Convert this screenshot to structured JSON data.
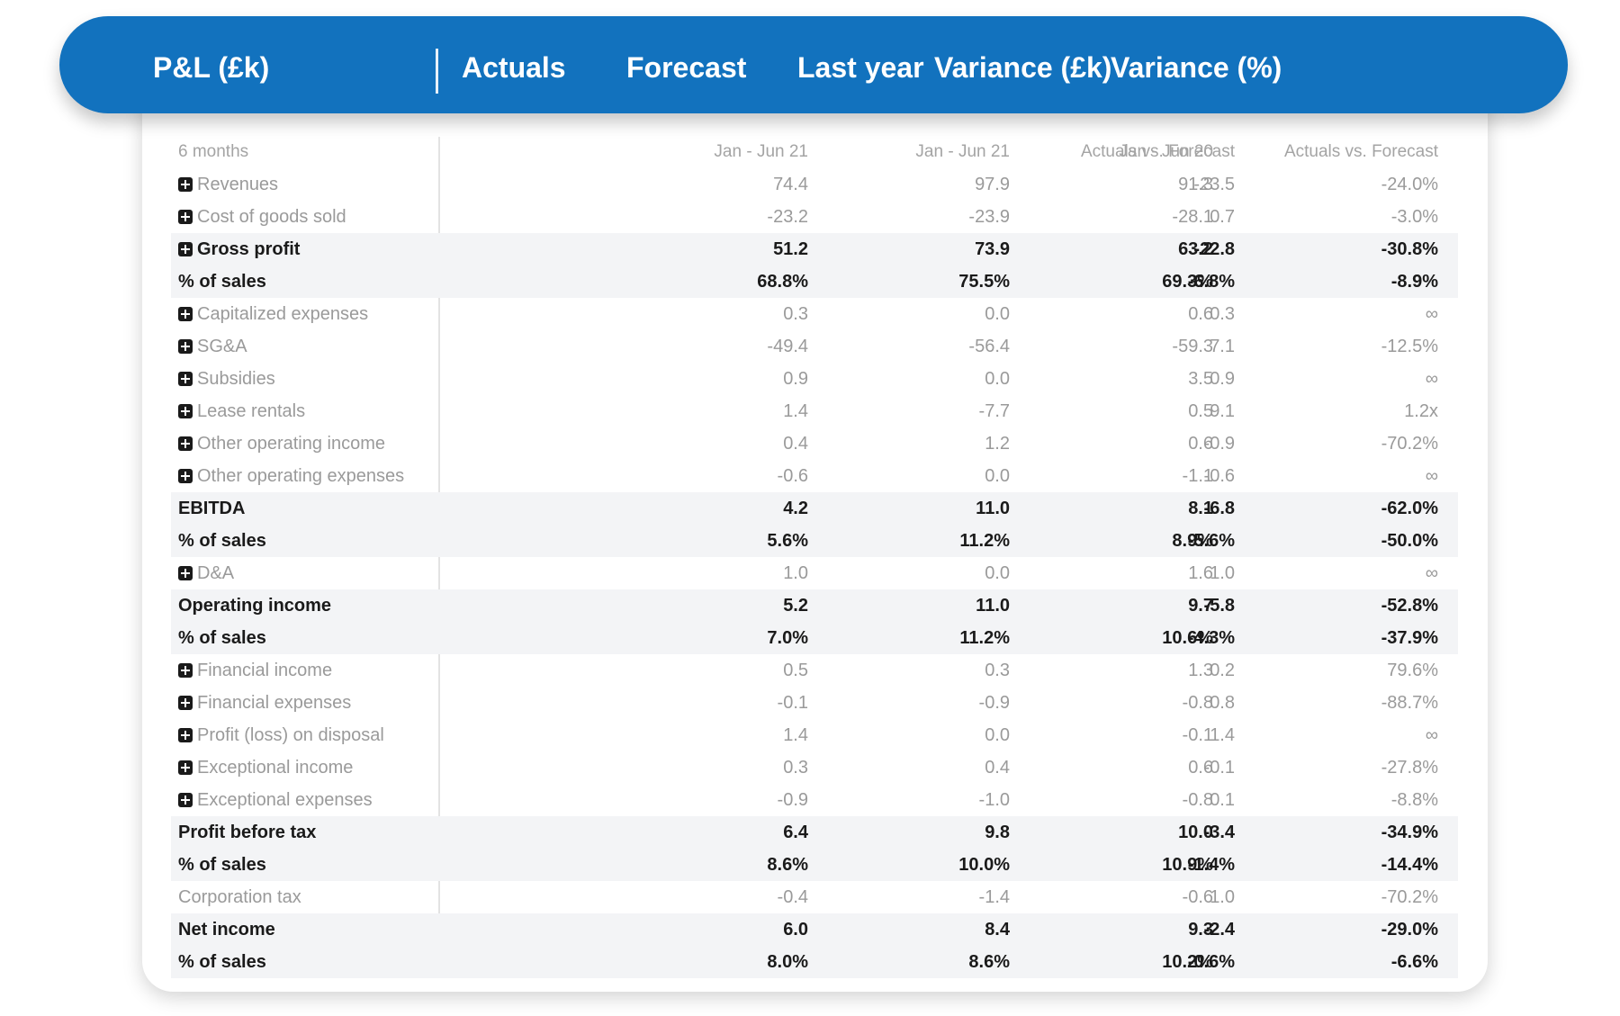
{
  "header": {
    "columns": [
      "P&L (£k)",
      "Actuals",
      "Forecast",
      "Last year",
      "Variance (£k)",
      "Variance (%)"
    ]
  },
  "subheader": [
    "6 months",
    "Jan - Jun 21",
    "Jan - Jun 21",
    "Jan - Jun 20",
    "Actuals vs. Forecast",
    "Actuals vs. Forecast"
  ],
  "rows": [
    {
      "label": "Revenues",
      "icon": "plus-box-icon",
      "bold": false,
      "alt": false,
      "values": [
        "74.4",
        "97.9",
        "91.3",
        "-23.5",
        "-24.0%"
      ]
    },
    {
      "label": "Cost of goods sold",
      "icon": "plus-box-icon",
      "bold": false,
      "alt": false,
      "values": [
        "-23.2",
        "-23.9",
        "-28.1",
        "0.7",
        "-3.0%"
      ]
    },
    {
      "label": "Gross profit",
      "icon": "plus-box-icon",
      "bold": true,
      "alt": true,
      "values": [
        "51.2",
        "73.9",
        "63.2",
        "-22.8",
        "-30.8%"
      ]
    },
    {
      "label": "% of sales",
      "icon": null,
      "bold": true,
      "alt": true,
      "values": [
        "68.8%",
        "75.5%",
        "69.3%",
        "-6.8%",
        "-8.9%"
      ]
    },
    {
      "label": "Capitalized expenses",
      "icon": "plus-box-icon",
      "bold": false,
      "alt": false,
      "values": [
        "0.3",
        "0.0",
        "0.6",
        "0.3",
        "∞"
      ]
    },
    {
      "label": "SG&A",
      "icon": "plus-box-icon",
      "bold": false,
      "alt": false,
      "values": [
        "-49.4",
        "-56.4",
        "-59.3",
        "7.1",
        "-12.5%"
      ]
    },
    {
      "label": "Subsidies",
      "icon": "plus-box-icon",
      "bold": false,
      "alt": false,
      "values": [
        "0.9",
        "0.0",
        "3.5",
        "0.9",
        "∞"
      ]
    },
    {
      "label": "Lease rentals",
      "icon": "plus-box-icon",
      "bold": false,
      "alt": false,
      "values": [
        "1.4",
        "-7.7",
        "0.5",
        "9.1",
        "1.2x"
      ]
    },
    {
      "label": "Other operating income",
      "icon": "plus-box-icon",
      "bold": false,
      "alt": false,
      "values": [
        "0.4",
        "1.2",
        "0.6",
        "-0.9",
        "-70.2%"
      ]
    },
    {
      "label": "Other operating expenses",
      "icon": "plus-box-icon",
      "bold": false,
      "alt": false,
      "values": [
        "-0.6",
        "0.0",
        "-1.1",
        "-0.6",
        "∞"
      ]
    },
    {
      "label": "EBITDA",
      "icon": null,
      "bold": true,
      "alt": true,
      "values": [
        "4.2",
        "11.0",
        "8.1",
        "-6.8",
        "-62.0%"
      ]
    },
    {
      "label": "% of sales",
      "icon": null,
      "bold": true,
      "alt": true,
      "values": [
        "5.6%",
        "11.2%",
        "8.9%",
        "-5.6%",
        "-50.0%"
      ]
    },
    {
      "label": "D&A",
      "icon": "plus-box-icon",
      "bold": false,
      "alt": false,
      "values": [
        "1.0",
        "0.0",
        "1.6",
        "1.0",
        "∞"
      ]
    },
    {
      "label": "Operating income",
      "icon": null,
      "bold": true,
      "alt": true,
      "values": [
        "5.2",
        "11.0",
        "9.7",
        "-5.8",
        "-52.8%"
      ]
    },
    {
      "label": "% of sales",
      "icon": null,
      "bold": true,
      "alt": true,
      "values": [
        "7.0%",
        "11.2%",
        "10.6%",
        "-4.3%",
        "-37.9%"
      ]
    },
    {
      "label": "Financial income",
      "icon": "plus-box-icon",
      "bold": false,
      "alt": false,
      "values": [
        "0.5",
        "0.3",
        "1.3",
        "0.2",
        "79.6%"
      ]
    },
    {
      "label": "Financial expenses",
      "icon": "plus-box-icon",
      "bold": false,
      "alt": false,
      "values": [
        "-0.1",
        "-0.9",
        "-0.8",
        "0.8",
        "-88.7%"
      ]
    },
    {
      "label": "Profit (loss) on disposal",
      "icon": "plus-box-icon",
      "bold": false,
      "alt": false,
      "values": [
        "1.4",
        "0.0",
        "-0.1",
        "1.4",
        "∞"
      ]
    },
    {
      "label": "Exceptional income",
      "icon": "plus-box-icon",
      "bold": false,
      "alt": false,
      "values": [
        "0.3",
        "0.4",
        "0.6",
        "-0.1",
        "-27.8%"
      ]
    },
    {
      "label": "Exceptional expenses",
      "icon": "plus-box-icon",
      "bold": false,
      "alt": false,
      "values": [
        "-0.9",
        "-1.0",
        "-0.8",
        "0.1",
        "-8.8%"
      ]
    },
    {
      "label": "Profit before tax",
      "icon": null,
      "bold": true,
      "alt": true,
      "values": [
        "6.4",
        "9.8",
        "10.0",
        "-3.4",
        "-34.9%"
      ]
    },
    {
      "label": "% of sales",
      "icon": null,
      "bold": true,
      "alt": true,
      "values": [
        "8.6%",
        "10.0%",
        "10.9%",
        "-1.4%",
        "-14.4%"
      ]
    },
    {
      "label": "Corporation tax",
      "icon": null,
      "bold": false,
      "alt": false,
      "values": [
        "-0.4",
        "-1.4",
        "-0.6",
        "1.0",
        "-70.2%"
      ]
    },
    {
      "label": "Net income",
      "icon": null,
      "bold": true,
      "alt": true,
      "values": [
        "6.0",
        "8.4",
        "9.3",
        "-2.4",
        "-29.0%"
      ]
    },
    {
      "label": "% of sales",
      "icon": null,
      "bold": true,
      "alt": true,
      "values": [
        "8.0%",
        "8.6%",
        "10.2%",
        "-0.6%",
        "-6.6%"
      ]
    }
  ],
  "colors": {
    "header_bg": "#1272be",
    "header_text": "#ffffff",
    "bold_text": "#1a1a1a",
    "muted_text": "#9a9a9a",
    "alt_row_bg": "#f3f4f6"
  }
}
